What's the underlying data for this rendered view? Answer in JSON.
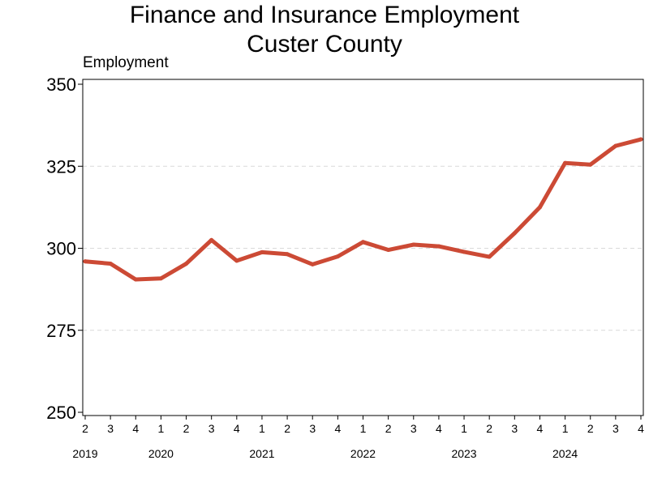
{
  "chart_data": {
    "type": "line",
    "title": "Finance and Insurance Employment",
    "subtitle": "Custer County",
    "ylabel": "Employment",
    "xlabel": "",
    "ylim": [
      250,
      350
    ],
    "y_ticks": [
      250,
      275,
      300,
      325,
      350
    ],
    "grid": true,
    "line_color": "#cc4a35",
    "x": [
      "2019 Q2",
      "2019 Q3",
      "2019 Q4",
      "2020 Q1",
      "2020 Q2",
      "2020 Q3",
      "2020 Q4",
      "2021 Q1",
      "2021 Q2",
      "2021 Q3",
      "2021 Q4",
      "2022 Q1",
      "2022 Q2",
      "2022 Q3",
      "2022 Q4",
      "2023 Q1",
      "2023 Q2",
      "2023 Q3",
      "2023 Q4",
      "2024 Q1",
      "2024 Q2",
      "2024 Q3",
      "2024 Q4"
    ],
    "quarter_labels": [
      "2",
      "3",
      "4",
      "1",
      "2",
      "3",
      "4",
      "1",
      "2",
      "3",
      "4",
      "1",
      "2",
      "3",
      "4",
      "1",
      "2",
      "3",
      "4",
      "1",
      "2",
      "3",
      "4"
    ],
    "year_labels": [
      "2019",
      "2020",
      "2021",
      "2022",
      "2023",
      "2024"
    ],
    "values": [
      296,
      295.3,
      290.5,
      290.8,
      295.3,
      302.5,
      296.2,
      298.8,
      298.2,
      295.1,
      297.5,
      301.9,
      299.5,
      301.1,
      300.6,
      298.9,
      297.4,
      304.6,
      312.5,
      326,
      325.5,
      331.2,
      333.2
    ]
  }
}
